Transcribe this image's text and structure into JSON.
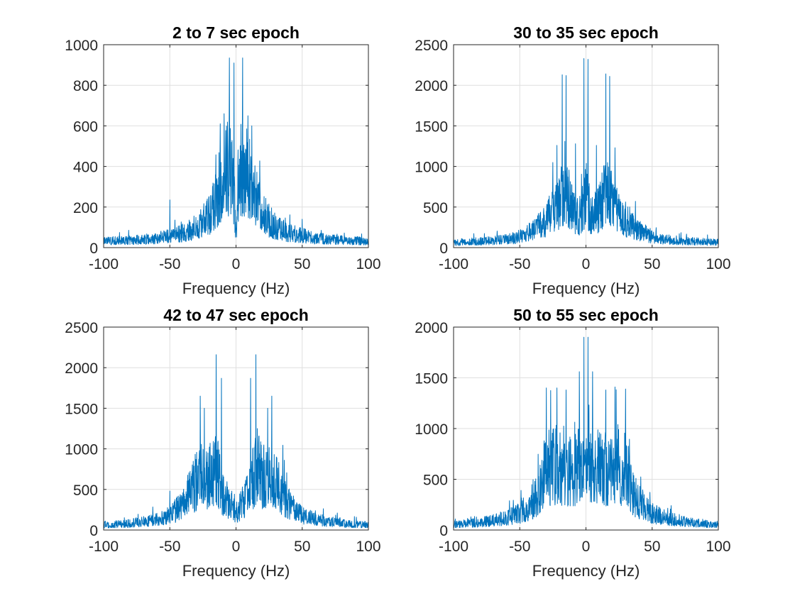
{
  "chart_data": [
    {
      "type": "line",
      "title": "2 to 7 sec epoch",
      "xlabel": "Frequency (Hz)",
      "ylabel": "",
      "xlim": [
        -100,
        100
      ],
      "ylim": [
        0,
        1000
      ],
      "xticks": [
        -100,
        -50,
        0,
        50,
        100
      ],
      "yticks": [
        0,
        200,
        400,
        600,
        800,
        1000
      ],
      "grid": true,
      "color": "#0072BD",
      "envelope": {
        "x": [
          -100,
          -80,
          -60,
          -50,
          -40,
          -30,
          -20,
          -15,
          -10,
          -5,
          -2,
          0,
          2,
          5,
          10,
          15,
          20,
          30,
          40,
          50,
          60,
          80,
          100
        ],
        "y": [
          35,
          40,
          50,
          65,
          80,
          110,
          180,
          260,
          400,
          450,
          360,
          60,
          360,
          450,
          400,
          260,
          180,
          110,
          80,
          65,
          50,
          40,
          35
        ]
      },
      "peaks": [
        {
          "x": -5,
          "y": 935
        },
        {
          "x": 5,
          "y": 935
        },
        {
          "x": -1.5,
          "y": 910
        },
        {
          "x": -9,
          "y": 660
        },
        {
          "x": 9,
          "y": 650
        },
        {
          "x": -12,
          "y": 610
        },
        {
          "x": 12,
          "y": 600
        },
        {
          "x": -50,
          "y": 235
        },
        {
          "x": 50,
          "y": 140
        }
      ]
    },
    {
      "type": "line",
      "title": "30 to 35 sec epoch",
      "xlabel": "Frequency (Hz)",
      "ylabel": "",
      "xlim": [
        -100,
        100
      ],
      "ylim": [
        0,
        2500
      ],
      "xticks": [
        -100,
        -50,
        0,
        50,
        100
      ],
      "yticks": [
        0,
        500,
        1000,
        1500,
        2000,
        2500
      ],
      "grid": true,
      "color": "#0072BD",
      "envelope": {
        "x": [
          -100,
          -80,
          -60,
          -50,
          -40,
          -30,
          -20,
          -15,
          -10,
          -5,
          -2,
          0,
          2,
          5,
          10,
          15,
          20,
          30,
          40,
          50,
          60,
          80,
          100
        ],
        "y": [
          70,
          85,
          110,
          150,
          230,
          380,
          650,
          800,
          520,
          420,
          560,
          800,
          560,
          420,
          520,
          800,
          650,
          380,
          230,
          150,
          110,
          85,
          70
        ]
      },
      "peaks": [
        {
          "x": -1.5,
          "y": 2330
        },
        {
          "x": 1.5,
          "y": 2320
        },
        {
          "x": -18,
          "y": 2130
        },
        {
          "x": -15,
          "y": 2120
        },
        {
          "x": 15,
          "y": 2140
        },
        {
          "x": 18,
          "y": 2110
        },
        {
          "x": -8,
          "y": 1280
        },
        {
          "x": 8,
          "y": 1260
        },
        {
          "x": -22,
          "y": 1260
        },
        {
          "x": 22,
          "y": 1230
        }
      ]
    },
    {
      "type": "line",
      "title": "42 to 47 sec epoch",
      "xlabel": "Frequency (Hz)",
      "ylabel": "",
      "xlim": [
        -100,
        100
      ],
      "ylim": [
        0,
        2500
      ],
      "xticks": [
        -100,
        -50,
        0,
        50,
        100
      ],
      "yticks": [
        0,
        500,
        1000,
        1500,
        2000,
        2500
      ],
      "grid": true,
      "color": "#0072BD",
      "envelope": {
        "x": [
          -100,
          -80,
          -60,
          -50,
          -40,
          -30,
          -25,
          -20,
          -15,
          -10,
          -5,
          0,
          5,
          10,
          15,
          20,
          25,
          30,
          40,
          50,
          60,
          80,
          100
        ],
        "y": [
          70,
          90,
          140,
          200,
          350,
          650,
          780,
          700,
          900,
          500,
          380,
          230,
          380,
          500,
          900,
          700,
          780,
          650,
          350,
          200,
          140,
          90,
          70
        ]
      },
      "peaks": [
        {
          "x": -15,
          "y": 2160
        },
        {
          "x": 15,
          "y": 2160
        },
        {
          "x": -11,
          "y": 1870
        },
        {
          "x": 11,
          "y": 1870
        },
        {
          "x": -27,
          "y": 1650
        },
        {
          "x": 27,
          "y": 1650
        },
        {
          "x": -24,
          "y": 1500
        },
        {
          "x": 24,
          "y": 1500
        },
        {
          "x": -50,
          "y": 480
        }
      ]
    },
    {
      "type": "line",
      "title": "50 to 55 sec epoch",
      "xlabel": "Frequency (Hz)",
      "ylabel": "",
      "xlim": [
        -100,
        100
      ],
      "ylim": [
        0,
        2000
      ],
      "xticks": [
        -100,
        -50,
        0,
        50,
        100
      ],
      "yticks": [
        0,
        500,
        1000,
        1500,
        2000
      ],
      "grid": true,
      "color": "#0072BD",
      "envelope": {
        "x": [
          -100,
          -80,
          -60,
          -50,
          -40,
          -35,
          -30,
          -25,
          -20,
          -10,
          -5,
          0,
          5,
          10,
          20,
          25,
          30,
          35,
          40,
          50,
          60,
          80,
          100
        ],
        "y": [
          60,
          80,
          130,
          180,
          300,
          420,
          650,
          700,
          700,
          650,
          700,
          760,
          700,
          650,
          700,
          700,
          650,
          420,
          300,
          180,
          130,
          80,
          60
        ]
      },
      "peaks": [
        {
          "x": -1.5,
          "y": 1900
        },
        {
          "x": 1.5,
          "y": 1900
        },
        {
          "x": -5,
          "y": 1560
        },
        {
          "x": 5,
          "y": 1560
        },
        {
          "x": -30,
          "y": 1400
        },
        {
          "x": -22,
          "y": 1400
        },
        {
          "x": 22,
          "y": 1410
        },
        {
          "x": 30,
          "y": 1390
        },
        {
          "x": -15,
          "y": 1380
        },
        {
          "x": 15,
          "y": 1380
        }
      ]
    }
  ]
}
